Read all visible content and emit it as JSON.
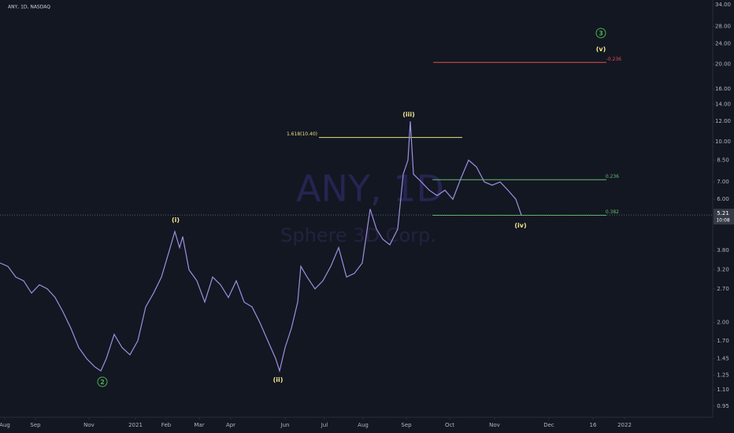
{
  "chart_data": {
    "type": "line",
    "symbol_info": "ANY, 1D, NASDAQ",
    "watermark_title": "ANY, 1D",
    "watermark_subtitle": "Sphere 3D Corp.",
    "log_scale": true,
    "color": "#9d8fe0",
    "x": [
      0,
      10,
      20,
      30,
      40,
      50,
      60,
      70,
      80,
      90,
      100,
      110,
      120,
      128,
      135,
      145,
      155,
      165,
      175,
      185,
      195,
      205,
      215,
      222,
      228,
      232,
      240,
      250,
      260,
      270,
      280,
      290,
      300,
      310,
      320,
      330,
      340,
      350,
      355,
      362,
      370,
      378,
      382,
      390,
      400,
      410,
      420,
      430,
      440,
      450,
      460,
      470,
      478,
      486,
      495,
      505,
      512,
      518,
      521,
      525,
      535,
      545,
      555,
      565,
      575,
      585,
      595,
      605,
      615,
      625,
      635,
      645,
      655,
      662
    ],
    "values": [
      3.4,
      3.3,
      3.0,
      2.9,
      2.6,
      2.8,
      2.7,
      2.5,
      2.2,
      1.9,
      1.6,
      1.45,
      1.35,
      1.3,
      1.45,
      1.8,
      1.6,
      1.5,
      1.7,
      2.3,
      2.6,
      3.0,
      3.8,
      4.5,
      3.9,
      4.3,
      3.2,
      2.9,
      2.4,
      3.0,
      2.8,
      2.5,
      2.9,
      2.4,
      2.3,
      2.0,
      1.7,
      1.45,
      1.3,
      1.6,
      1.9,
      2.4,
      3.3,
      3.0,
      2.7,
      2.9,
      3.3,
      3.9,
      3.0,
      3.1,
      3.4,
      5.5,
      4.6,
      4.2,
      4.0,
      4.6,
      7.5,
      8.5,
      12,
      7.5,
      7.0,
      6.5,
      6.2,
      6.5,
      6.0,
      7.2,
      8.5,
      8.0,
      7.0,
      6.8,
      7.0,
      6.5,
      6.0,
      5.21
    ],
    "xlim": [
      0,
      905
    ],
    "xticks": [
      {
        "value": 6,
        "label": "Aug"
      },
      {
        "value": 45,
        "label": "Sep"
      },
      {
        "value": 113,
        "label": "Nov"
      },
      {
        "value": 172,
        "label": "2021"
      },
      {
        "value": 211,
        "label": "Feb"
      },
      {
        "value": 253,
        "label": "Mar"
      },
      {
        "value": 293,
        "label": "Apr"
      },
      {
        "value": 362,
        "label": "Jun"
      },
      {
        "value": 412,
        "label": "Jul"
      },
      {
        "value": 461,
        "label": "Aug"
      },
      {
        "value": 516,
        "label": "Sep"
      },
      {
        "value": 571,
        "label": "Oct"
      },
      {
        "value": 628,
        "label": "Nov"
      },
      {
        "value": 697,
        "label": "Dec"
      },
      {
        "value": 753,
        "label": "16"
      },
      {
        "value": 793,
        "label": "2022"
      }
    ],
    "ylim": [
      0.86,
      35.4
    ],
    "yticks": [
      {
        "value": 34,
        "label": "34.00"
      },
      {
        "value": 28,
        "label": "28.00"
      },
      {
        "value": 24,
        "label": "24.00"
      },
      {
        "value": 20,
        "label": "20.00"
      },
      {
        "value": 16,
        "label": "16.00"
      },
      {
        "value": 14,
        "label": "14.00"
      },
      {
        "value": 12,
        "label": "12.00"
      },
      {
        "value": 10,
        "label": "10.00"
      },
      {
        "value": 8.5,
        "label": "8.50"
      },
      {
        "value": 7,
        "label": "7.00"
      },
      {
        "value": 6,
        "label": "6.00"
      },
      {
        "value": 3.8,
        "label": "3.80"
      },
      {
        "value": 3.2,
        "label": "3.20"
      },
      {
        "value": 2.7,
        "label": "2.70"
      },
      {
        "value": 2,
        "label": "2.00"
      },
      {
        "value": 1.7,
        "label": "1.70"
      },
      {
        "value": 1.45,
        "label": "1.45"
      },
      {
        "value": 1.25,
        "label": "1.25"
      },
      {
        "value": 1.1,
        "label": "1.10"
      },
      {
        "value": 0.95,
        "label": "0.95"
      }
    ],
    "last_price": {
      "value": 5.21,
      "label": "5.21",
      "countdown": "10:08"
    },
    "fib_levels": [
      {
        "label": "1.618(10.40)",
        "value": 10.4,
        "color": "#e6e17a"
      },
      {
        "label": "0.236",
        "value": 7.14,
        "color": "#5fbf6a"
      },
      {
        "label": "0.382",
        "value": 5.2,
        "color": "#5fbf6a"
      },
      {
        "label": "-0.236",
        "value": 20.3,
        "color": "#e0504f"
      }
    ],
    "wave_labels": [
      "3",
      "(v)",
      "(iii)",
      "(i)",
      "(iv)",
      "(ii)",
      "2"
    ]
  }
}
